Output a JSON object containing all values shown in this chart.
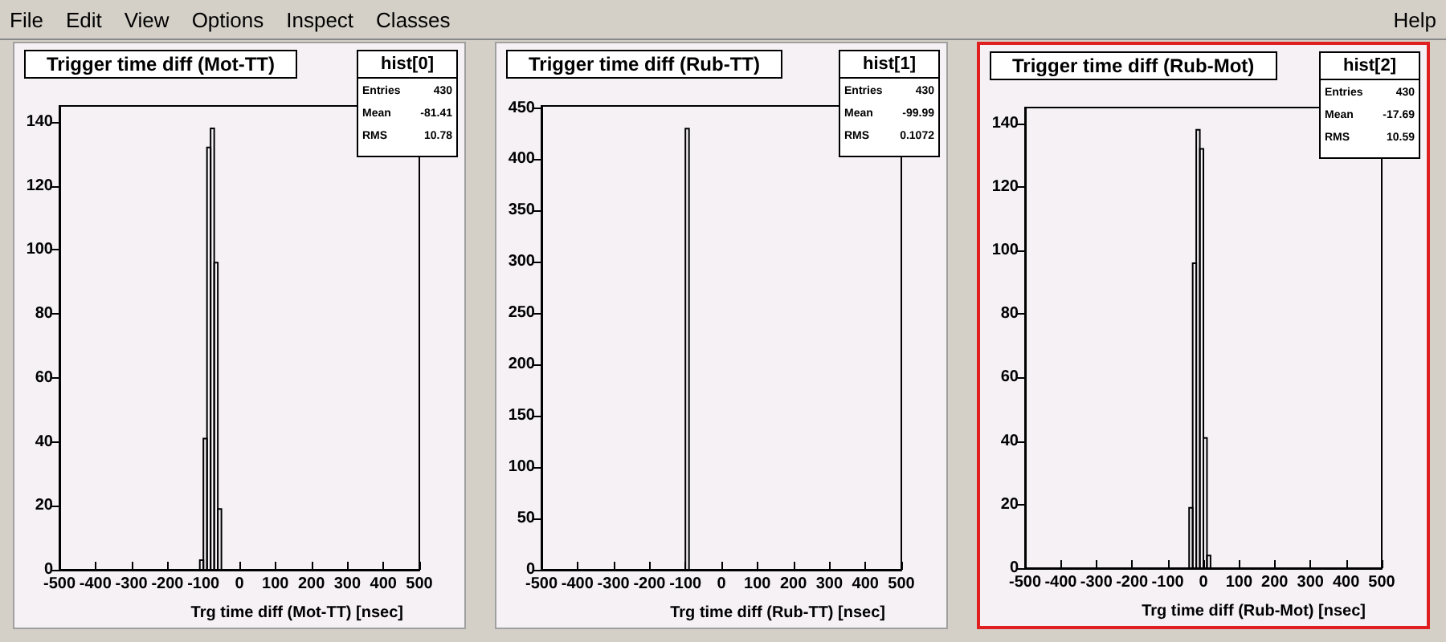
{
  "chart_data": [
    {
      "type": "other",
      "annotations": [
        "File",
        "Edit",
        "View",
        "Options",
        "Inspect",
        "Classes",
        "Help"
      ]
    },
    {
      "type": "histogram",
      "title": "Trigger time diff (Mot-TT)",
      "xlabel": "Trg time diff (Mot-TT) [nsec]",
      "color": "#000000",
      "bins": [
        -110,
        -100,
        -90,
        -80,
        -70,
        -60,
        -50
      ],
      "values": [
        3,
        41,
        132,
        138,
        96,
        19
      ],
      "xlim": [
        -500,
        500
      ],
      "xticks": [
        -500,
        -400,
        -300,
        -200,
        -100,
        0,
        100,
        200,
        300,
        400,
        500
      ],
      "ylim": [
        0,
        145
      ],
      "yticks": [
        0,
        20,
        40,
        60,
        80,
        100,
        120,
        140
      ],
      "annotations": [
        "hist[0]",
        "Entries",
        "430",
        "Mean",
        "-81.41",
        "RMS",
        "10.78"
      ]
    },
    {
      "type": "histogram",
      "title": "Trigger time diff (Rub-TT)",
      "xlabel": "Trg time diff (Rub-TT) [nsec]",
      "color": "#000000",
      "bins": [
        -100,
        -90
      ],
      "values": [
        430
      ],
      "xlim": [
        -500,
        500
      ],
      "xticks": [
        -500,
        -400,
        -300,
        -200,
        -100,
        0,
        100,
        200,
        300,
        400,
        500
      ],
      "ylim": [
        0,
        452
      ],
      "yticks": [
        0,
        50,
        100,
        150,
        200,
        250,
        300,
        350,
        400,
        450
      ],
      "annotations": [
        "hist[1]",
        "Entries",
        "430",
        "Mean",
        "-99.99",
        "RMS",
        "0.1072"
      ]
    },
    {
      "type": "histogram",
      "title": "Trigger time diff (Rub-Mot)",
      "xlabel": "Trg time diff (Rub-Mot) [nsec]",
      "color": "#000000",
      "bins": [
        -40,
        -30,
        -20,
        -10,
        0,
        10,
        20
      ],
      "values": [
        19,
        96,
        138,
        132,
        41,
        4
      ],
      "xlim": [
        -500,
        500
      ],
      "xticks": [
        -500,
        -400,
        -300,
        -200,
        -100,
        0,
        100,
        200,
        300,
        400,
        500
      ],
      "ylim": [
        0,
        145
      ],
      "yticks": [
        0,
        20,
        40,
        60,
        80,
        100,
        120,
        140
      ],
      "annotations": [
        "hist[2]",
        "Entries",
        "430",
        "Mean",
        "-17.69",
        "RMS",
        "10.59"
      ]
    }
  ]
}
